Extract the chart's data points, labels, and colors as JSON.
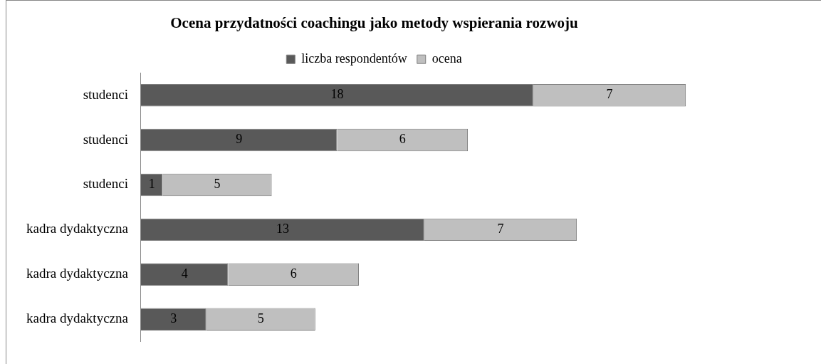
{
  "chart_data": {
    "type": "bar",
    "orientation": "horizontal",
    "stacked": true,
    "title": "Ocena przydatności coachingu jako metody wspierania rozwoju",
    "categories": [
      "studenci",
      "studenci",
      "studenci",
      "kadra dydaktyczna",
      "kadra dydaktyczna",
      "kadra dydaktyczna"
    ],
    "series": [
      {
        "name": "liczba respondentów",
        "color": "#595959",
        "values": [
          18,
          9,
          1,
          13,
          4,
          3
        ]
      },
      {
        "name": "ocena",
        "color": "#bfbfbf",
        "values": [
          7,
          6,
          5,
          7,
          6,
          5
        ]
      }
    ],
    "data_labels": true,
    "legend": "top"
  }
}
